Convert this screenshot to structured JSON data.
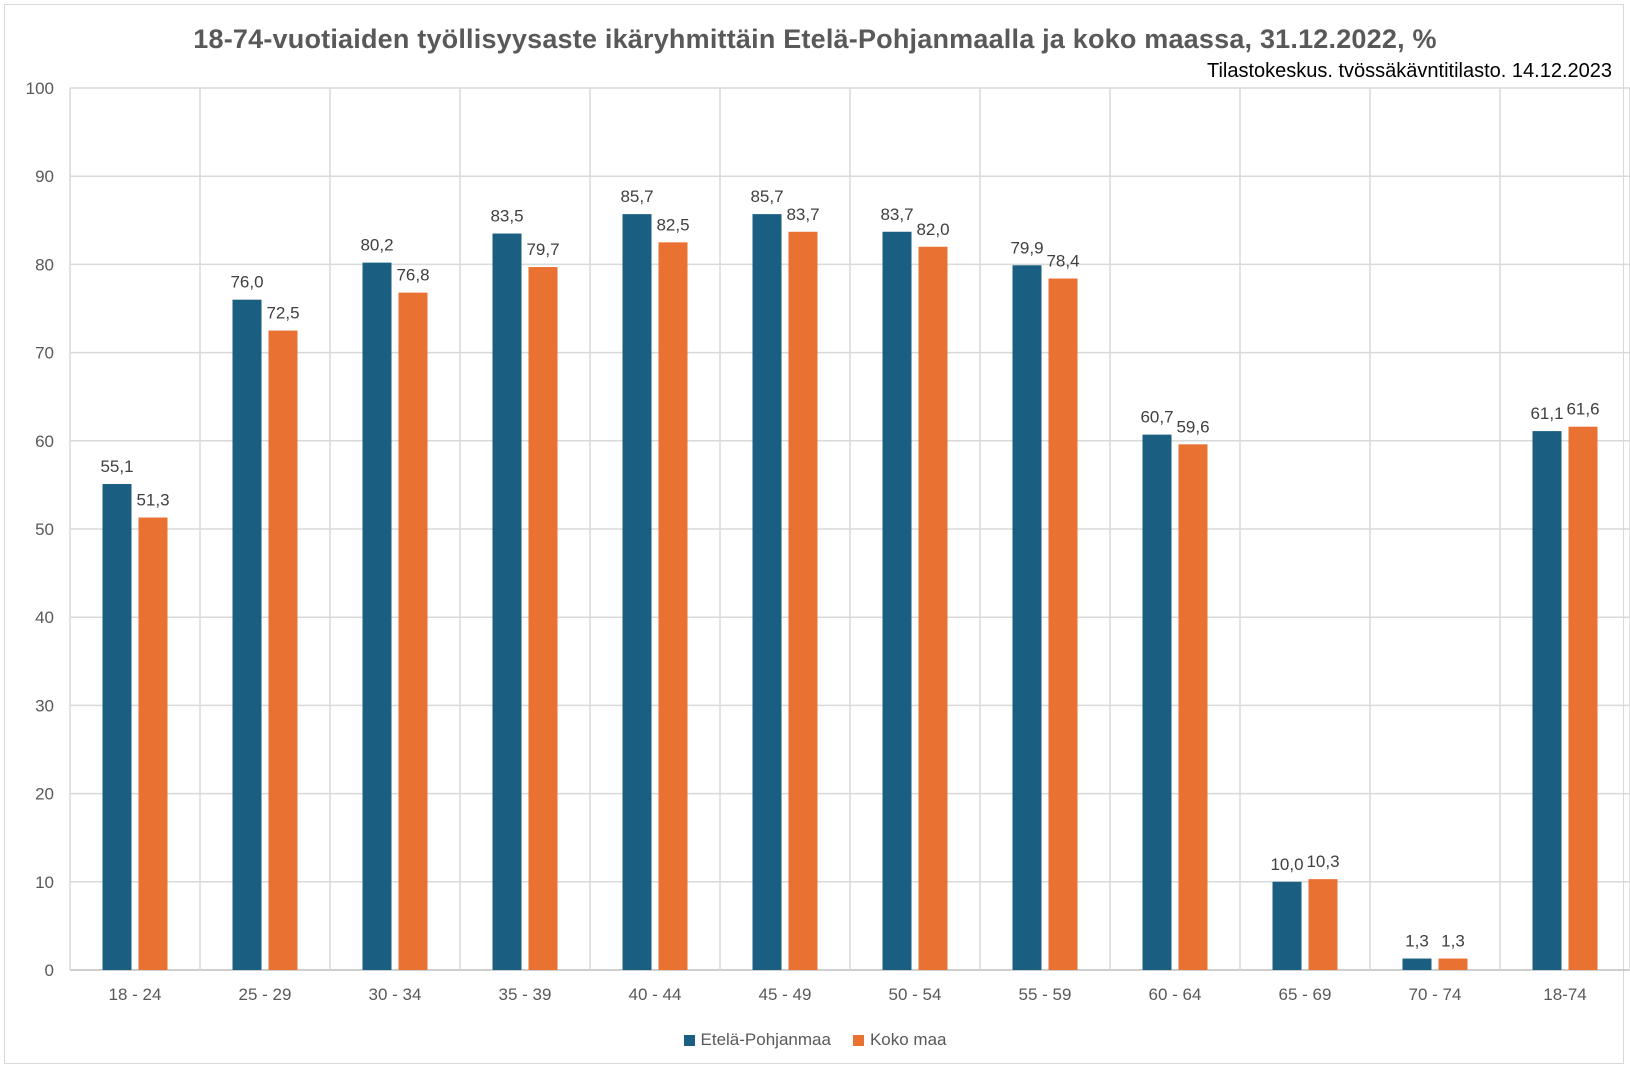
{
  "chart_data": {
    "type": "bar",
    "title": "18-74-vuotiaiden työllisyysaste ikäryhmittäin Etelä-Pohjanmaalla ja koko maassa, 31.12.2022, %",
    "subtitle": "Tilastokeskus. tvössäkävntitilasto. 14.12.2023",
    "categories": [
      "18 - 24",
      "25 - 29",
      "30 - 34",
      "35 - 39",
      "40 - 44",
      "45 - 49",
      "50 - 54",
      "55 - 59",
      "60 - 64",
      "65 - 69",
      "70 - 74",
      "18-74"
    ],
    "series": [
      {
        "name": "Etelä-Pohjanmaa",
        "color": "#1a5f82",
        "values": [
          55.1,
          76.0,
          80.2,
          83.5,
          85.7,
          85.7,
          83.7,
          79.9,
          60.7,
          10.0,
          1.3,
          61.1
        ],
        "labels": [
          "55,1",
          "76,0",
          "80,2",
          "83,5",
          "85,7",
          "85,7",
          "83,7",
          "79,9",
          "60,7",
          "10,0",
          "1,3",
          "61,1"
        ]
      },
      {
        "name": "Koko maa",
        "color": "#e97132",
        "values": [
          51.3,
          72.5,
          76.8,
          79.7,
          82.5,
          83.7,
          82.0,
          78.4,
          59.6,
          10.3,
          1.3,
          61.6
        ],
        "labels": [
          "51,3",
          "72,5",
          "76,8",
          "79,7",
          "82,5",
          "83,7",
          "82,0",
          "78,4",
          "59,6",
          "10,3",
          "1,3",
          "61,6"
        ]
      }
    ],
    "ylim": [
      0,
      100
    ],
    "yticks": [
      "0",
      "10",
      "20",
      "30",
      "40",
      "50",
      "60",
      "70",
      "80",
      "90",
      "100"
    ],
    "grid": true,
    "legend_position": "bottom"
  }
}
